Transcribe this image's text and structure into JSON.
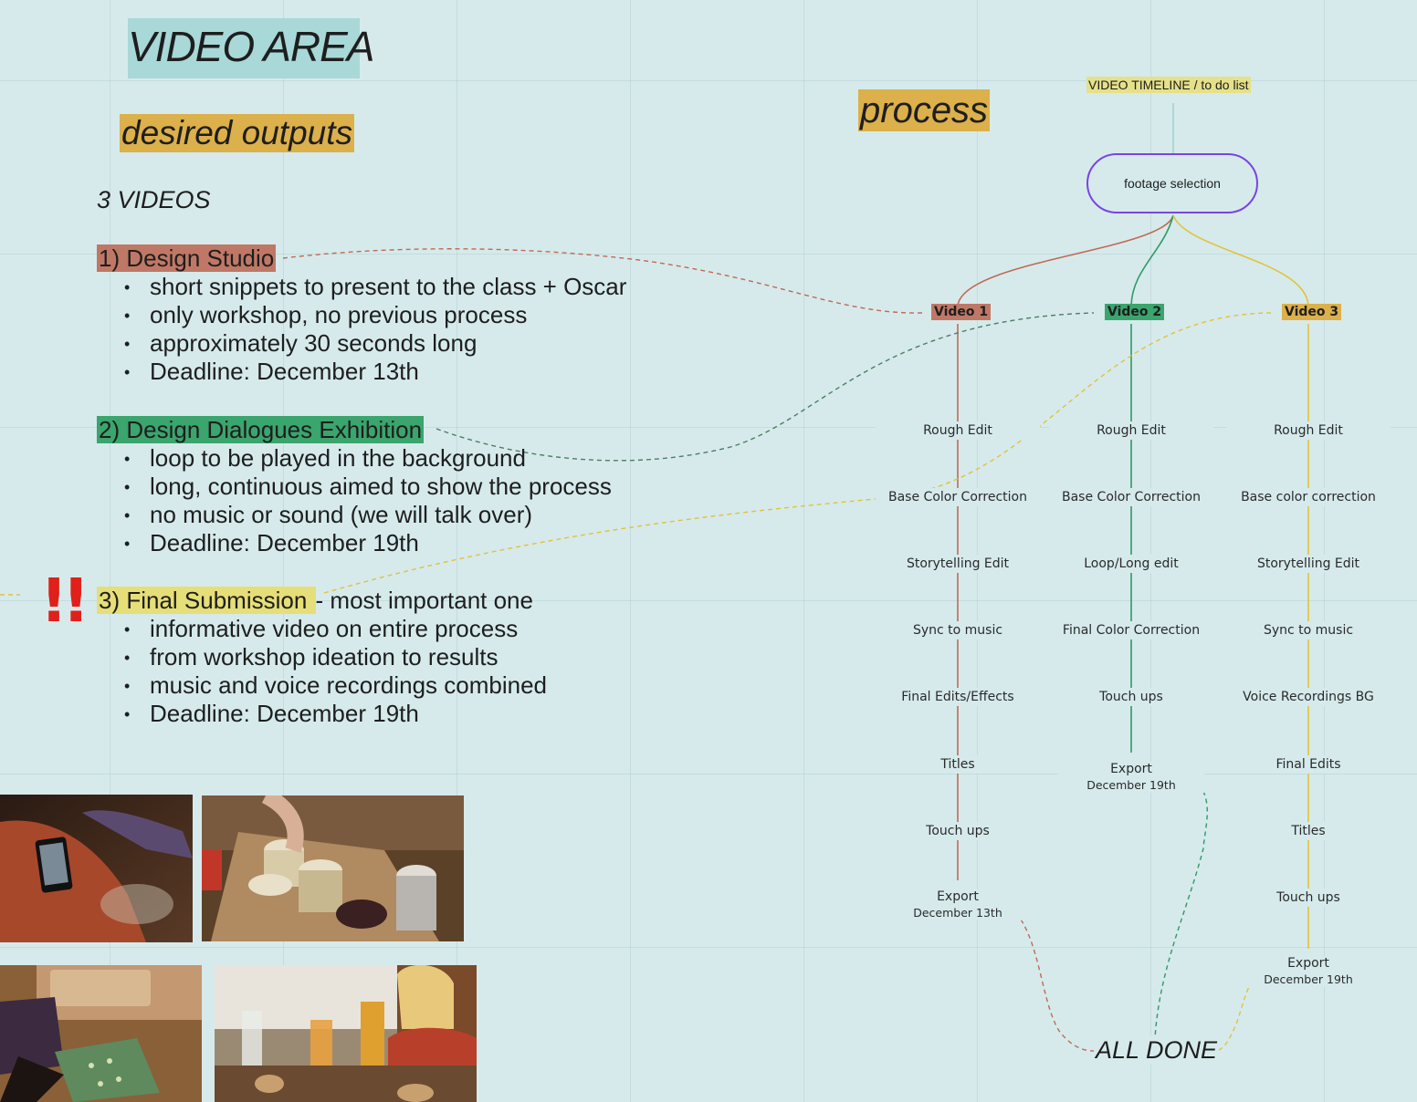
{
  "board": {
    "title": "VIDEO AREA",
    "outputs_title": "desired outputs",
    "process_title": "process",
    "videos_heading": "3 VIDEOS",
    "alert_mark": "!!"
  },
  "sections": [
    {
      "head": "1) Design Studio",
      "suffix": "",
      "bullets": [
        "short snippets to present to the class + Oscar",
        "only workshop, no previous process",
        "approximately 30 seconds long",
        "Deadline: December 13th"
      ]
    },
    {
      "head": "2) Design Dialogues Exhibition",
      "suffix": "",
      "bullets": [
        "loop to be played in the background",
        "long, continuous aimed to show the process",
        "no music or sound (we will talk over)",
        "Deadline: December 19th"
      ]
    },
    {
      "head": "3) Final Submission ",
      "suffix": "- most important one",
      "bullets": [
        "informative video on entire process",
        "from workshop ideation to results",
        "music and voice recordings combined",
        "Deadline: December 19th"
      ]
    }
  ],
  "timeline": {
    "label": "VIDEO TIMELINE / to do list",
    "root": "footage selection",
    "columns": [
      {
        "tag": "Video 1",
        "color": "#c07866",
        "steps": [
          "Rough Edit",
          "Base Color Correction",
          "Storytelling Edit",
          "Sync to music",
          "Final Edits/Effects",
          "Titles",
          "Touch ups"
        ],
        "export": "Export",
        "export_date": "December 13th"
      },
      {
        "tag": "Video 2",
        "color": "#2f9a62",
        "steps": [
          "Rough Edit",
          "Base Color Correction",
          "Loop/Long edit",
          "Final Color Correction",
          "Touch ups"
        ],
        "export": "Export",
        "export_date": "December 19th"
      },
      {
        "tag": "Video 3",
        "color": "#e2c23a",
        "steps": [
          "Rough Edit",
          "Base color correction",
          "Storytelling Edit",
          "Sync to music",
          "Voice Recordings BG",
          "Final Edits",
          "Titles",
          "Touch ups"
        ],
        "export": "Export",
        "export_date": "December 19th"
      }
    ],
    "final": "ALL DONE"
  },
  "colors": {
    "background": "#d6eaec",
    "orange": "#dcb04a",
    "red": "#c07866",
    "green": "#3aa56d",
    "yellow": "#e6de78",
    "purple": "#7a44e4"
  }
}
